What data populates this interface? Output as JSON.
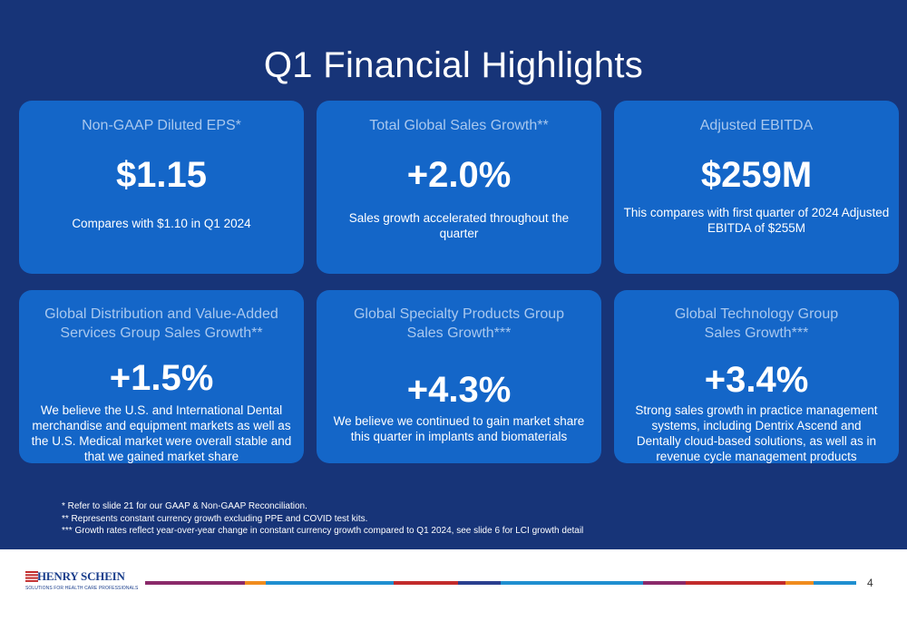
{
  "title": "Q1 Financial Highlights",
  "cards": [
    {
      "label": "Non-GAAP Diluted EPS*",
      "value": "$1.15",
      "desc": "Compares with $1.10 in Q1 2024"
    },
    {
      "label": "Total Global Sales Growth**",
      "value": "+2.0%",
      "desc": "Sales growth accelerated throughout the quarter"
    },
    {
      "label": "Adjusted EBITDA",
      "value": "$259M",
      "desc": "This compares with first quarter of 2024 Adjusted EBITDA of $255M"
    },
    {
      "label": "Global Distribution and Value-Added Services Group Sales Growth**",
      "value": "+1.5%",
      "desc": "We believe the U.S. and International Dental merchandise and equipment markets as well as the U.S. Medical market were overall stable and that we gained market share"
    },
    {
      "label": "Global Specialty Products Group Sales Growth***",
      "value": "+4.3%",
      "desc": "We believe we continued to gain market share this quarter in implants and biomaterials"
    },
    {
      "label": "Global Technology Group Sales Growth***",
      "value": "+3.4%",
      "desc": "Strong sales growth in practice management systems, including Dentrix Ascend and Dentally cloud-based solutions, as well as in revenue cycle management products"
    }
  ],
  "footnotes": [
    "* Refer to slide 21 for our GAAP & Non-GAAP Reconciliation.",
    "** Represents constant currency growth excluding PPE and COVID test kits.",
    "*** Growth rates reflect year-over-year change in constant currency growth compared to Q1 2024, see slide 6 for LCI growth detail"
  ],
  "logo": {
    "name": "HENRY SCHEIN",
    "tagline": "SOLUTIONS FOR HEALTH CARE PROFESSIONALS"
  },
  "page_number": "4",
  "colors": {
    "background": "#173478",
    "card": "#1466c8",
    "label": "#a9c8ee",
    "stripe": [
      "#8a2a6a",
      "#f08c1e",
      "#1f8fd0",
      "#c22b2b",
      "#2a3f8f",
      "#1f8fd0",
      "#8a2a6a",
      "#c22b2b",
      "#f08c1e",
      "#1f8fd0"
    ]
  }
}
